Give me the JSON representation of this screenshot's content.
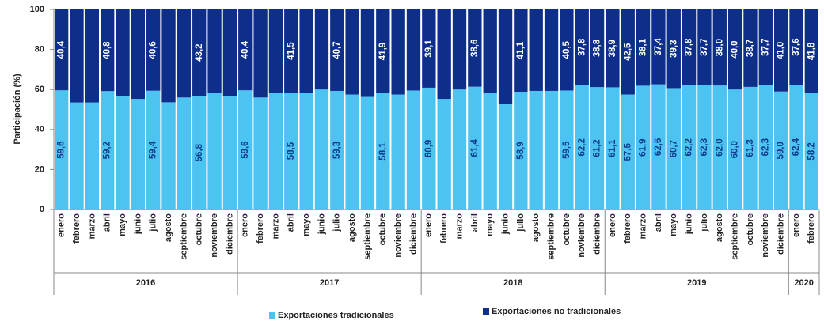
{
  "chart_data": {
    "type": "stacked_bar",
    "y_label": "Participación (%)",
    "ylim": [
      0,
      100
    ],
    "yticks": [
      0,
      20,
      40,
      60,
      80,
      100
    ],
    "groups": [
      {
        "name": "2016",
        "categories": [
          "enero",
          "febrero",
          "marzo",
          "abril",
          "mayo",
          "junio",
          "julio",
          "agosto",
          "septiembre",
          "octubre",
          "noviembre",
          "diciembre"
        ]
      },
      {
        "name": "2017",
        "categories": [
          "enero",
          "febrero",
          "marzo",
          "abril",
          "mayo",
          "junio",
          "julio",
          "agosto",
          "septiembre",
          "octubre",
          "noviembre",
          "diciembre"
        ]
      },
      {
        "name": "2018",
        "categories": [
          "enero",
          "febrero",
          "marzo",
          "abril",
          "mayo",
          "junio",
          "julio",
          "agosto",
          "septiembre",
          "octubre",
          "noviembre",
          "diciembre"
        ]
      },
      {
        "name": "2019",
        "categories": [
          "enero",
          "febrero",
          "marzo",
          "abril",
          "mayo",
          "junio",
          "julio",
          "agosto",
          "septiembre",
          "octubre",
          "noviembre",
          "diciembre"
        ]
      },
      {
        "name": "2020",
        "categories": [
          "enero",
          "febrero"
        ]
      }
    ],
    "series": [
      {
        "name": "Exportaciones tradicionales",
        "color": "#4cc3f0",
        "label_color": "#0d3a8c",
        "values": [
          59.6,
          53.5,
          53.5,
          59.2,
          56.8,
          55.3,
          59.4,
          53.6,
          56,
          56.8,
          58.5,
          56.8,
          59.6,
          56,
          58.5,
          58.5,
          58.3,
          60,
          59.3,
          57.5,
          56.3,
          58.1,
          57.5,
          59.5,
          60.9,
          55.3,
          60,
          61.4,
          58.5,
          52.8,
          58.9,
          59.3,
          59.3,
          59.5,
          62.2,
          61.2,
          61.1,
          57.5,
          61.9,
          62.6,
          60.7,
          62.2,
          62.3,
          62,
          60,
          61.3,
          62.3,
          59,
          62.4,
          58.2
        ],
        "value_labels": [
          "59,6",
          null,
          null,
          "59,2",
          null,
          null,
          "59,4",
          null,
          null,
          "56,8",
          null,
          null,
          "59,6",
          null,
          null,
          "58,5",
          null,
          null,
          "59,3",
          null,
          null,
          "58,1",
          null,
          null,
          "60,9",
          null,
          null,
          "61,4",
          null,
          null,
          "58,9",
          null,
          null,
          "59,5",
          "62,2",
          "61,2",
          "61,1",
          "57,5",
          "61,9",
          "62,6",
          "60,7",
          "62,2",
          "62,3",
          "62,0",
          "60,0",
          "61,3",
          "62,3",
          "59,0",
          "62,4",
          "58,2"
        ]
      },
      {
        "name": "Exportaciones no tradicionales",
        "color": "#0d2f8a",
        "label_color": "#ffffff",
        "values": [
          40.4,
          46.5,
          46.5,
          40.8,
          43.2,
          44.7,
          40.6,
          46.4,
          44,
          43.2,
          41.5,
          43.2,
          40.4,
          44,
          41.5,
          41.5,
          41.7,
          40,
          40.7,
          42.5,
          43.7,
          41.9,
          42.5,
          40.5,
          39.1,
          44.7,
          40,
          38.6,
          41.5,
          47.2,
          41.1,
          40.7,
          40.7,
          40.5,
          37.8,
          38.8,
          38.9,
          42.5,
          38.1,
          37.4,
          39.3,
          37.8,
          37.7,
          38,
          40,
          38.7,
          37.7,
          41,
          37.6,
          41.8
        ],
        "value_labels": [
          "40,4",
          null,
          null,
          "40,8",
          null,
          null,
          "40,6",
          null,
          null,
          "43,2",
          null,
          null,
          "40,4",
          null,
          null,
          "41,5",
          null,
          null,
          "40,7",
          null,
          null,
          "41,9",
          null,
          null,
          "39,1",
          null,
          null,
          "38,6",
          null,
          null,
          "41,1",
          null,
          null,
          "40,5",
          "37,8",
          "38,8",
          "38,9",
          "42,5",
          "38,1",
          "37,4",
          "39,3",
          "37,8",
          "37,7",
          "38,0",
          "40,0",
          "38,7",
          "37,7",
          "41,0",
          "37,6",
          "41,8"
        ]
      }
    ]
  }
}
